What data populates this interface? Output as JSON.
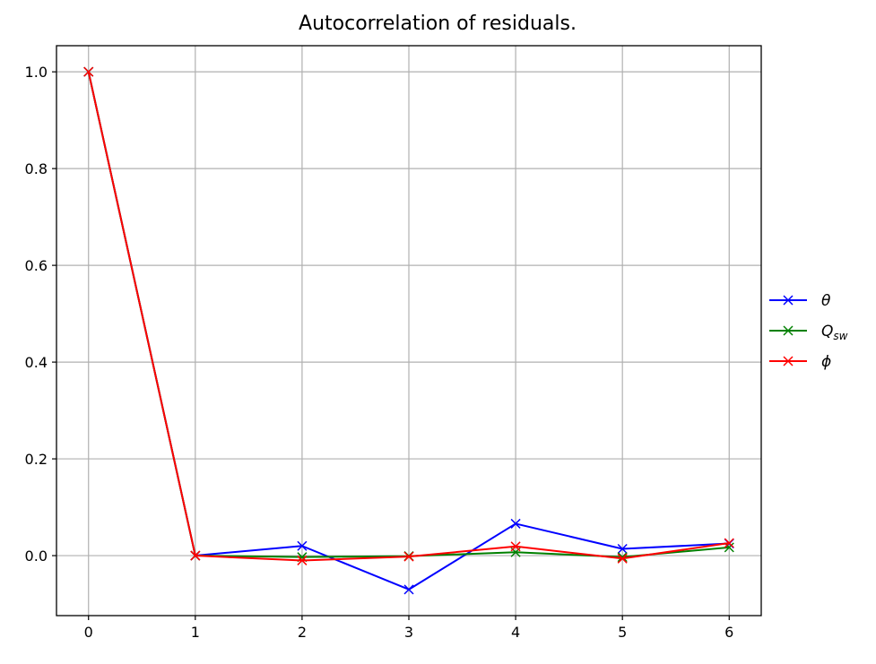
{
  "chart_data": {
    "type": "line",
    "title": "Autocorrelation of residuals.",
    "xlabel": "",
    "ylabel": "",
    "x": [
      0,
      1,
      2,
      3,
      4,
      5,
      6
    ],
    "xlim": [
      -0.3,
      6.3
    ],
    "ylim": [
      -0.124,
      1.054
    ],
    "xticks": [
      0,
      1,
      2,
      3,
      4,
      5,
      6
    ],
    "yticks": [
      0.0,
      0.2,
      0.4,
      0.6,
      0.8,
      1.0
    ],
    "ytick_labels": [
      "0.0",
      "0.2",
      "0.4",
      "0.6",
      "0.8",
      "1.0"
    ],
    "grid": true,
    "marker": "x",
    "legend_placement": "center-right outside",
    "series": [
      {
        "name": "θ",
        "subscript": "",
        "color": "#0000ff",
        "values": [
          1.0,
          0.0,
          0.02,
          -0.07,
          0.066,
          0.014,
          0.025
        ]
      },
      {
        "name": "Q",
        "subscript": "sw",
        "color": "#008000",
        "values": [
          1.0,
          0.0,
          -0.003,
          -0.001,
          0.007,
          -0.003,
          0.017
        ]
      },
      {
        "name": "ϕ",
        "subscript": "",
        "color": "#ff0000",
        "values": [
          1.0,
          0.0,
          -0.01,
          -0.002,
          0.019,
          -0.006,
          0.026
        ]
      }
    ]
  }
}
